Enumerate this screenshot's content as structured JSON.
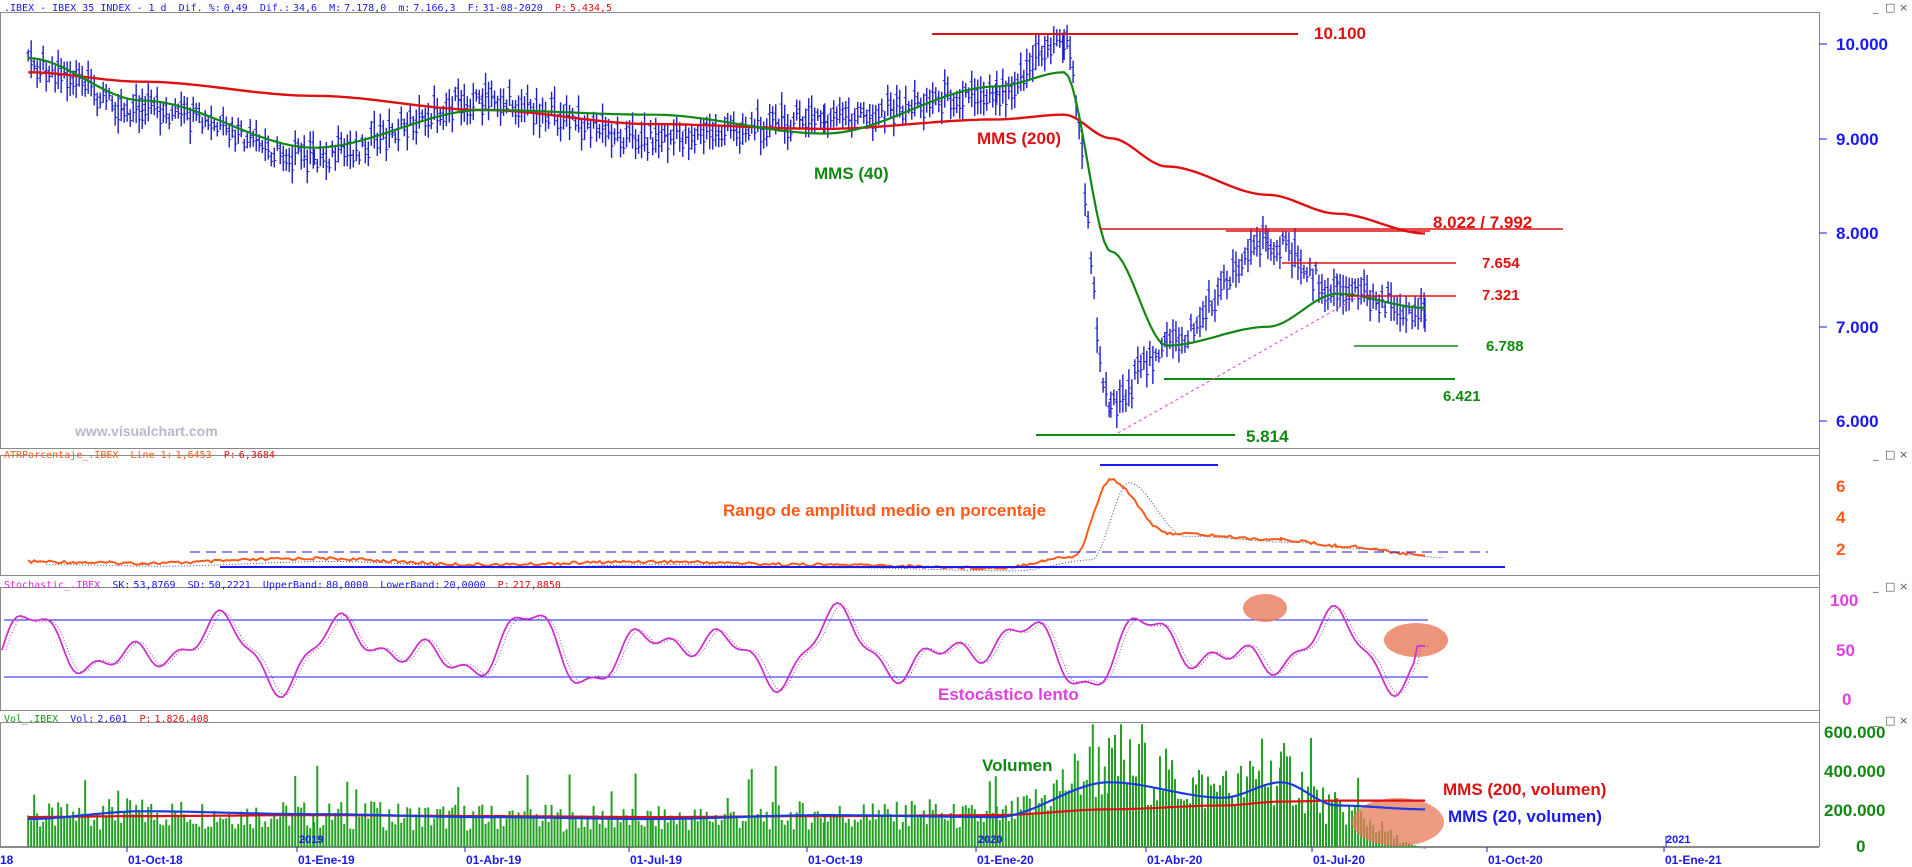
{
  "colors": {
    "price_bars": "#1f1fd0",
    "mms40": "#118811",
    "mms200": "#dd1111",
    "atr_line": "#ff5a1a",
    "atr_signal": "#3344aa",
    "stoch_k": "#cc33cc",
    "stoch_d": "#9a4a9a",
    "volume_bars": "#22a022",
    "vol_mms200": "#dd1111",
    "vol_mms20": "#1a3cdd",
    "blue_annotation": "#1a1aee",
    "green_annotation": "#118811",
    "red_annotation": "#dd1111",
    "highlight": "#e87a5a",
    "axis_text": "#1a1aee",
    "panel_border": "#8a8a8a"
  },
  "icons": [
    "minimize-icon",
    "restore-icon",
    "close-icon"
  ],
  "price_panel": {
    "header": {
      "symbol": ".IBEX - IBEX 35 INDEX - 1 d",
      "dif_pct_label": "Dif. %:",
      "dif_pct": "0,49",
      "dif_label": "Dif.:",
      "dif": "34,6",
      "m_label": "M:",
      "m": "7.178,0",
      "m2_label": "m:",
      "m2": "7.166,3",
      "f_label": "F:",
      "f": "31-08-2020",
      "p_label": "P:",
      "p": "5.434,5"
    },
    "y_ticks": [
      "10.000",
      "9.000",
      "8.000",
      "7.000",
      "6.000"
    ],
    "watermark": "www.visualchart.com",
    "labels": {
      "mms40": "MMS (40)",
      "mms200": "MMS (200)",
      "level_10100": "10.100",
      "level_8022": "8.022 / 7.992",
      "level_7654": "7.654",
      "level_7321": "7.321",
      "level_6788": "6.788",
      "level_6421": "6.421",
      "level_5814": "5.814"
    }
  },
  "atr_panel": {
    "header": {
      "name": "ATRPorcentaje_.IBEX",
      "line_label": "Line 1:",
      "line": "1,6453",
      "p_label": "P:",
      "p": "6,3684"
    },
    "y_ticks": [
      "6",
      "4",
      "2"
    ],
    "label": "Rango de amplitud medio en porcentaje"
  },
  "stoch_panel": {
    "header": {
      "name": "Stochastic_.IBEX",
      "sk_label": "SK:",
      "sk": "53,8769",
      "sd_label": "SD:",
      "sd": "50,2221",
      "ub_label": "UpperBand:",
      "ub": "80,0000",
      "lb_label": "LowerBand:",
      "lb": "20,0000",
      "p_label": "P:",
      "p": "217,8850"
    },
    "y_ticks": [
      "100",
      "50",
      "0"
    ],
    "label": "Estocástico lento"
  },
  "volume_panel": {
    "header": {
      "name": "Vol_.IBEX",
      "vol_label": "Vol:",
      "vol": "2.601",
      "p_label": "P:",
      "p": "1.826.408"
    },
    "y_ticks": [
      "600.000",
      "400.000",
      "200.000",
      "0"
    ],
    "labels": {
      "volumen": "Volumen",
      "mms200_vol": "MMS (200, volumen)",
      "mms20_vol": "MMS (20, volumen)"
    },
    "year_marks": [
      "2019",
      "2020",
      "2021"
    ]
  },
  "x_axis": {
    "labels": [
      "18",
      "01-Oct-18",
      "01-Ene-19",
      "01-Abr-19",
      "01-Jul-19",
      "01-Oct-19",
      "01-Ene-20",
      "01-Abr-20",
      "01-Jul-20",
      "01-Oct-20",
      "01-Ene-21"
    ]
  },
  "chart_data": [
    {
      "type": "line",
      "subtype": "ohlc-bars",
      "title": ".IBEX - IBEX 35 INDEX - 1 d",
      "x": [
        "2018-08",
        "2018-10",
        "2019-01",
        "2019-04",
        "2019-07",
        "2019-10",
        "2020-01",
        "2020-02-20",
        "2020-03-16",
        "2020-04",
        "2020-06-08",
        "2020-07",
        "2020-08-31"
      ],
      "series": [
        {
          "name": "close",
          "values": [
            9800,
            9300,
            8800,
            9400,
            9000,
            9200,
            9500,
            10050,
            6200,
            6800,
            7900,
            7400,
            7172
          ]
        },
        {
          "name": "MMS (40)",
          "values": [
            9850,
            9400,
            8900,
            9300,
            9250,
            9050,
            9550,
            9700,
            7800,
            6800,
            7000,
            7350,
            7200
          ]
        },
        {
          "name": "MMS (200)",
          "values": [
            9700,
            9600,
            9450,
            9300,
            9150,
            9100,
            9200,
            9250,
            9000,
            8700,
            8400,
            8200,
            7990
          ]
        }
      ],
      "levels": [
        10100,
        8022,
        7992,
        7654,
        7321,
        6788,
        6421,
        5814
      ],
      "ylim": [
        5700,
        10300
      ]
    },
    {
      "type": "line",
      "title": "ATRPorcentaje_.IBEX",
      "x": [
        "2018-08",
        "2018-10",
        "2019-01",
        "2019-04",
        "2019-07",
        "2019-10",
        "2020-01",
        "2020-02-25",
        "2020-03-16",
        "2020-04-15",
        "2020-06",
        "2020-07",
        "2020-08-31"
      ],
      "series": [
        {
          "name": "Line 1",
          "values": [
            1.2,
            1.1,
            1.4,
            1.0,
            1.2,
            1.0,
            0.8,
            1.5,
            6.4,
            3.0,
            2.6,
            2.2,
            1.65
          ]
        }
      ],
      "ylim": [
        0.5,
        7
      ]
    },
    {
      "type": "line",
      "title": "Stochastic_.IBEX",
      "x": [
        "2018-08",
        "2018-10",
        "2019-01",
        "2019-04",
        "2019-07",
        "2019-10",
        "2020-01",
        "2020-03",
        "2020-06",
        "2020-07",
        "2020-08-31"
      ],
      "series": [
        {
          "name": "SK",
          "values": [
            70,
            20,
            85,
            30,
            15,
            80,
            95,
            10,
            95,
            70,
            54
          ]
        },
        {
          "name": "SD",
          "values": [
            65,
            25,
            80,
            35,
            20,
            75,
            90,
            15,
            92,
            68,
            50
          ]
        }
      ],
      "bands": [
        80,
        20
      ],
      "ylim": [
        -5,
        105
      ]
    },
    {
      "type": "bar",
      "title": "Vol_.IBEX",
      "x": [
        "2018-08",
        "2018-10",
        "2019-01",
        "2019-04",
        "2019-07",
        "2019-10",
        "2020-01",
        "2020-03",
        "2020-05",
        "2020-06",
        "2020-07",
        "2020-08-31"
      ],
      "series": [
        {
          "name": "Vol",
          "values": [
            160000,
            180000,
            170000,
            160000,
            150000,
            170000,
            160000,
            420000,
            300000,
            380000,
            200000,
            2601
          ]
        },
        {
          "name": "MMS (200, volumen)",
          "values": [
            160000,
            165000,
            170000,
            165000,
            160000,
            165000,
            170000,
            200000,
            220000,
            240000,
            245000,
            245000
          ]
        },
        {
          "name": "MMS (20, volumen)",
          "values": [
            150000,
            190000,
            175000,
            160000,
            150000,
            170000,
            160000,
            340000,
            260000,
            340000,
            220000,
            200000
          ]
        }
      ],
      "ylim": [
        0,
        620000
      ]
    }
  ]
}
